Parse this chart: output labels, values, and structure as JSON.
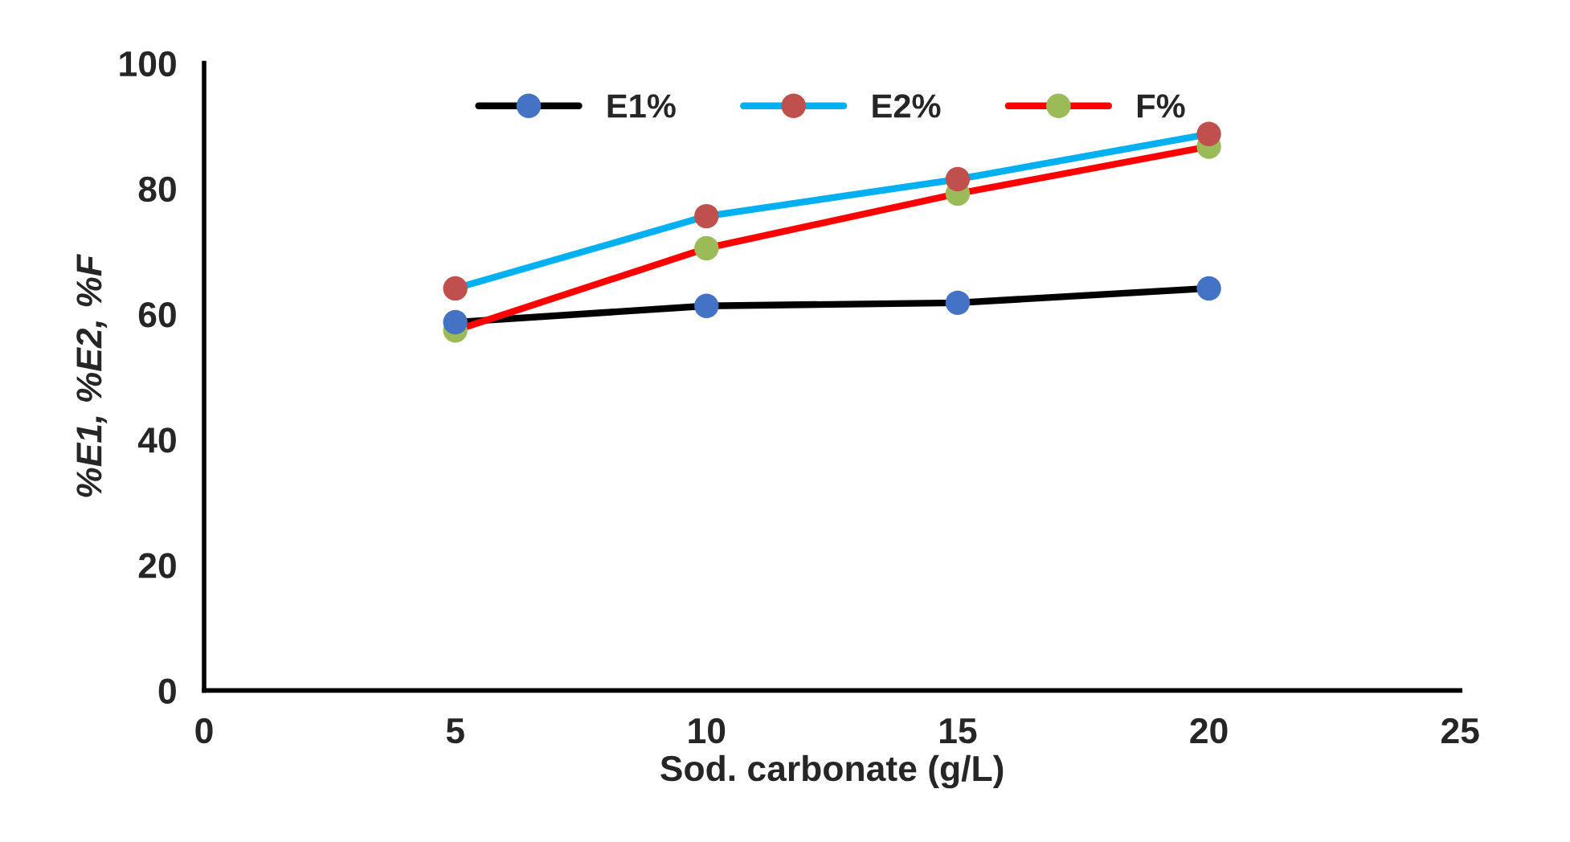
{
  "chart_data": {
    "type": "line",
    "xlabel": "Sod. carbonate (g/L)",
    "ylabel": "%E1, %E2, %F",
    "x": [
      5,
      10,
      15,
      20
    ],
    "series": [
      {
        "name": "E1%",
        "color": "#000000",
        "colors": [
          "#4472c4",
          "#4472c4",
          "#4472c4",
          "#4472c4"
        ],
        "values": [
          58.7,
          61.3,
          61.8,
          64.1
        ]
      },
      {
        "name": "E2%",
        "color": "#00b0f0",
        "colors": [
          "#c0504d",
          "#c0504d",
          "#c0504d",
          "#c0504d"
        ],
        "values": [
          64.1,
          75.6,
          81.5,
          88.7
        ]
      },
      {
        "name": "F%",
        "color": "#ff0000",
        "colors": [
          "#9bbb59",
          "#9bbb59",
          "#9bbb59",
          "#9bbb59"
        ],
        "values": [
          57.4,
          70.5,
          79.2,
          86.7
        ]
      }
    ],
    "xlim": [
      0,
      25
    ],
    "xticks": [
      0,
      5,
      10,
      15,
      20,
      25
    ],
    "ylim": [
      0,
      100
    ],
    "yticks": [
      0,
      20,
      40,
      60,
      80,
      100
    ],
    "grid": false,
    "legend": "top",
    "marker": "circle",
    "line_style": "solid"
  }
}
